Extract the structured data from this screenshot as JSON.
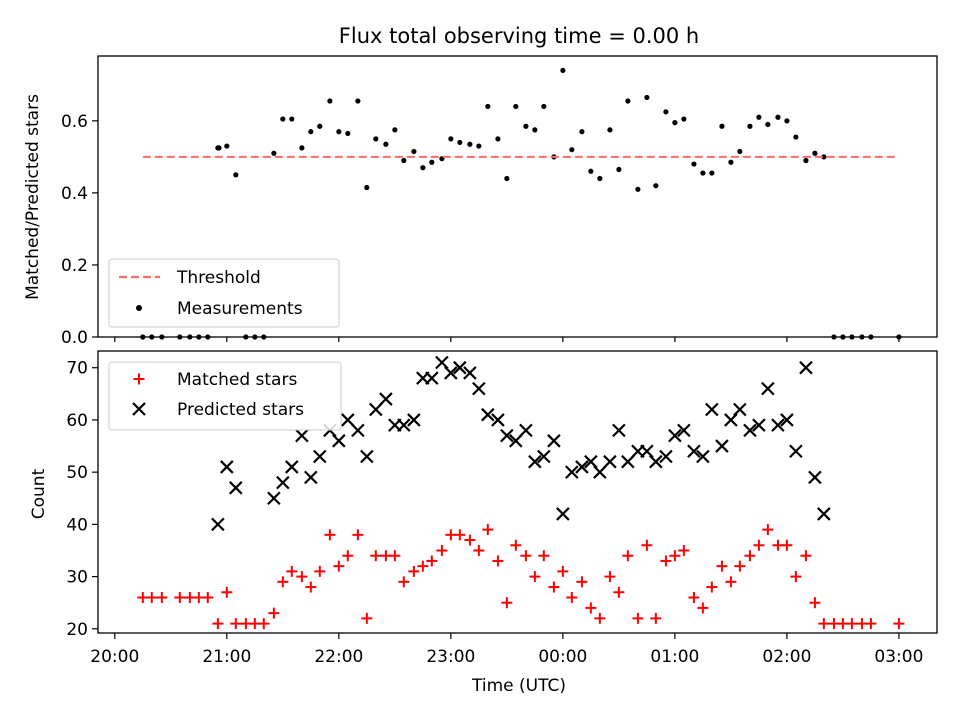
{
  "title": "Flux total observing time = 0.00 h",
  "colors": {
    "threshold": "#ff6b6b",
    "measurement": "#000000",
    "matched": "#ff0000",
    "predicted": "#000000"
  },
  "chart_data": [
    {
      "type": "scatter",
      "ylabel": "Matched/Predicted stars",
      "ylim": [
        0,
        0.78
      ],
      "yticks": [
        0.0,
        0.2,
        0.4,
        0.6
      ],
      "ytick_labels": [
        "0.0",
        "0.2",
        "0.4",
        "0.6"
      ],
      "xlim_hours": [
        19.85,
        27.34
      ],
      "threshold": {
        "value": 0.5,
        "x_range_hours": [
          20.25,
          27.0
        ]
      },
      "legend": {
        "position": "lower-left",
        "entries": [
          "Threshold",
          "Measurements"
        ]
      },
      "series": [
        {
          "name": "Measurements",
          "x_hours": [
            20.25,
            20.33,
            20.42,
            20.58,
            20.67,
            20.75,
            20.83,
            20.92,
            20.93,
            21.0,
            21.08,
            21.17,
            21.25,
            21.33,
            21.42,
            21.5,
            21.58,
            21.67,
            21.75,
            21.83,
            21.92,
            22.0,
            22.08,
            22.17,
            22.25,
            22.33,
            22.42,
            22.5,
            22.58,
            22.67,
            22.75,
            22.83,
            22.92,
            23.0,
            23.08,
            23.17,
            23.25,
            23.33,
            23.42,
            23.5,
            23.58,
            23.67,
            23.75,
            23.83,
            23.92,
            24.0,
            24.08,
            24.17,
            24.25,
            24.33,
            24.42,
            24.5,
            24.58,
            24.67,
            24.75,
            24.83,
            24.92,
            25.0,
            25.08,
            25.17,
            25.25,
            25.33,
            25.42,
            25.5,
            25.58,
            25.67,
            25.75,
            25.83,
            25.92,
            26.0,
            26.08,
            26.17,
            26.25,
            26.33,
            26.42,
            26.5,
            26.58,
            26.67,
            26.75,
            27.0
          ],
          "y": [
            0,
            0,
            0,
            0,
            0,
            0,
            0,
            0.525,
            0.525,
            0.53,
            0.45,
            0,
            0,
            0,
            0.51,
            0.605,
            0.605,
            0.525,
            0.57,
            0.585,
            0.655,
            0.57,
            0.565,
            0.655,
            0.415,
            0.55,
            0.535,
            0.575,
            0.49,
            0.515,
            0.47,
            0.485,
            0.495,
            0.55,
            0.54,
            0.535,
            0.53,
            0.64,
            0.55,
            0.44,
            0.64,
            0.585,
            0.575,
            0.64,
            0.5,
            0.74,
            0.52,
            0.57,
            0.46,
            0.44,
            0.575,
            0.465,
            0.655,
            0.41,
            0.665,
            0.42,
            0.625,
            0.595,
            0.605,
            0.48,
            0.455,
            0.455,
            0.585,
            0.485,
            0.515,
            0.585,
            0.61,
            0.59,
            0.61,
            0.6,
            0.555,
            0.49,
            0.51,
            0.5,
            0,
            0,
            0,
            0,
            0,
            0
          ]
        }
      ]
    },
    {
      "type": "scatter",
      "ylabel": "Count",
      "xlabel": "Time (UTC)",
      "ylim": [
        19.2,
        73.2
      ],
      "yticks": [
        20,
        30,
        40,
        50,
        60,
        70
      ],
      "ytick_labels": [
        "20",
        "30",
        "40",
        "50",
        "60",
        "70"
      ],
      "xlim_hours": [
        19.85,
        27.34
      ],
      "xticks_hours": [
        20,
        21,
        22,
        23,
        24,
        25,
        26,
        27
      ],
      "xtick_labels": [
        "20:00",
        "21:00",
        "22:00",
        "23:00",
        "00:00",
        "01:00",
        "02:00",
        "03:00"
      ],
      "legend": {
        "position": "top-left",
        "entries": [
          "Matched stars",
          "Predicted stars"
        ]
      },
      "series": [
        {
          "name": "Matched stars",
          "x_hours": [
            20.25,
            20.33,
            20.42,
            20.58,
            20.67,
            20.75,
            20.83,
            20.92,
            21.0,
            21.08,
            21.17,
            21.25,
            21.33,
            21.42,
            21.5,
            21.58,
            21.67,
            21.75,
            21.83,
            21.92,
            22.0,
            22.08,
            22.17,
            22.25,
            22.33,
            22.42,
            22.5,
            22.58,
            22.67,
            22.75,
            22.83,
            22.92,
            23.0,
            23.08,
            23.17,
            23.25,
            23.33,
            23.42,
            23.5,
            23.58,
            23.67,
            23.75,
            23.83,
            23.92,
            24.0,
            24.08,
            24.17,
            24.25,
            24.33,
            24.42,
            24.5,
            24.58,
            24.67,
            24.75,
            24.83,
            24.92,
            25.0,
            25.08,
            25.17,
            25.25,
            25.33,
            25.42,
            25.5,
            25.58,
            25.67,
            25.75,
            25.83,
            25.92,
            26.0,
            26.08,
            26.17,
            26.25,
            26.33,
            26.42,
            26.5,
            26.58,
            26.67,
            26.75,
            27.0
          ],
          "y": [
            26,
            26,
            26,
            26,
            26,
            26,
            26,
            21,
            27,
            21,
            21,
            21,
            21,
            23,
            29,
            31,
            30,
            28,
            31,
            38,
            32,
            34,
            38,
            22,
            34,
            34,
            34,
            29,
            31,
            32,
            33,
            35,
            38,
            38,
            37,
            35,
            39,
            33,
            25,
            36,
            34,
            30,
            34,
            28,
            31,
            26,
            29,
            24,
            22,
            30,
            27,
            34,
            22,
            36,
            22,
            33,
            34,
            35,
            26,
            24,
            28,
            32,
            29,
            32,
            34,
            36,
            39,
            36,
            36,
            30,
            34,
            25,
            21,
            21,
            21,
            21,
            21,
            21,
            21
          ]
        },
        {
          "name": "Predicted stars",
          "x_hours": [
            20.92,
            21.0,
            21.08,
            21.42,
            21.5,
            21.58,
            21.67,
            21.75,
            21.83,
            21.92,
            22.0,
            22.08,
            22.17,
            22.25,
            22.33,
            22.42,
            22.5,
            22.58,
            22.67,
            22.75,
            22.83,
            22.92,
            23.0,
            23.08,
            23.17,
            23.25,
            23.33,
            23.42,
            23.5,
            23.58,
            23.67,
            23.75,
            23.83,
            23.92,
            24.0,
            24.08,
            24.17,
            24.25,
            24.33,
            24.42,
            24.5,
            24.58,
            24.67,
            24.75,
            24.83,
            24.92,
            25.0,
            25.08,
            25.17,
            25.25,
            25.33,
            25.42,
            25.5,
            25.58,
            25.67,
            25.75,
            25.83,
            25.92,
            26.0,
            26.08,
            26.17,
            26.25,
            26.33
          ],
          "y": [
            40,
            51,
            47,
            45,
            48,
            51,
            57,
            49,
            53,
            58,
            56,
            60,
            58,
            53,
            62,
            64,
            59,
            59,
            60,
            68,
            68,
            71,
            69,
            70,
            69,
            66,
            61,
            60,
            57,
            56,
            58,
            52,
            53,
            56,
            42,
            50,
            51,
            52,
            50,
            52,
            58,
            52,
            54,
            54,
            52,
            53,
            57,
            58,
            54,
            53,
            62,
            55,
            60,
            62,
            58,
            59,
            66,
            59,
            60,
            54,
            70,
            49,
            42
          ]
        }
      ]
    }
  ]
}
